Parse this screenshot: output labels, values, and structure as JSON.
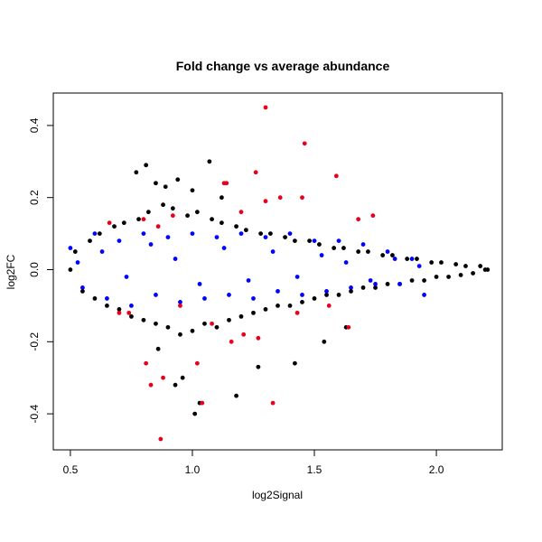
{
  "chart_data": {
    "type": "scatter",
    "title": "Fold change vs average abundance",
    "xlabel": "log2Signal",
    "ylabel": "log2FC",
    "xlim": [
      0.43,
      2.27
    ],
    "ylim": [
      -0.5,
      0.49
    ],
    "xticks": [
      0.5,
      1.0,
      1.5,
      2.0
    ],
    "xtick_labels": [
      "0.5",
      "1.0",
      "1.5",
      "2.0"
    ],
    "yticks": [
      -0.4,
      -0.2,
      0.0,
      0.2,
      0.4
    ],
    "ytick_labels": [
      "-0.4",
      "-0.2",
      "0.0",
      "0.2",
      "0.4"
    ],
    "grid": false,
    "legend": "none",
    "series": [
      {
        "color": "#000000",
        "x": [
          0.5,
          0.52,
          0.55,
          0.58,
          0.6,
          0.62,
          0.65,
          0.68,
          0.7,
          0.72,
          0.75,
          0.78,
          0.8,
          0.82,
          0.85,
          0.88,
          0.9,
          0.92,
          0.95,
          0.98,
          1.0,
          1.02,
          1.05,
          1.08,
          1.1,
          1.12,
          1.15,
          1.18,
          1.2,
          1.22,
          1.25,
          1.28,
          1.3,
          1.32,
          1.35,
          1.38,
          1.4,
          1.42,
          1.45,
          1.48,
          1.5,
          1.52,
          1.55,
          1.58,
          1.6,
          1.62,
          1.65,
          1.68,
          1.7,
          1.72,
          1.75,
          1.78,
          1.8,
          1.82,
          1.85,
          1.88,
          1.9,
          1.92,
          1.95,
          1.98,
          2.0,
          2.02,
          2.05,
          2.08,
          2.1,
          2.12,
          2.15,
          2.18,
          2.2,
          2.21,
          0.81,
          0.85,
          0.89,
          0.94,
          1.0,
          1.07,
          1.12,
          0.86,
          0.96,
          1.01,
          1.18,
          1.27,
          1.42,
          1.54,
          1.63,
          0.77,
          0.93,
          1.03
        ],
        "y": [
          0.0,
          0.05,
          -0.06,
          0.08,
          -0.08,
          0.1,
          -0.1,
          0.12,
          -0.11,
          0.13,
          -0.13,
          0.14,
          -0.14,
          0.16,
          -0.15,
          0.18,
          -0.16,
          0.17,
          -0.18,
          0.15,
          -0.17,
          0.16,
          -0.15,
          0.14,
          -0.16,
          0.13,
          -0.14,
          0.12,
          -0.13,
          0.11,
          -0.12,
          0.1,
          -0.11,
          0.1,
          -0.1,
          0.09,
          -0.1,
          0.08,
          -0.09,
          0.08,
          -0.08,
          0.07,
          -0.07,
          0.06,
          -0.07,
          0.06,
          -0.06,
          0.05,
          -0.05,
          0.05,
          -0.05,
          0.04,
          -0.04,
          0.04,
          -0.04,
          0.03,
          -0.03,
          0.03,
          -0.03,
          0.02,
          -0.02,
          0.02,
          -0.02,
          0.015,
          -0.015,
          0.01,
          -0.01,
          0.01,
          0.0,
          0.0,
          0.29,
          0.24,
          0.23,
          0.25,
          0.22,
          0.3,
          0.2,
          -0.22,
          -0.3,
          -0.4,
          -0.35,
          -0.27,
          -0.26,
          -0.2,
          -0.16,
          0.27,
          -0.32,
          -0.37
        ]
      },
      {
        "color": "#0000ff",
        "x": [
          0.5,
          0.55,
          0.6,
          0.65,
          0.7,
          0.75,
          0.8,
          0.85,
          0.9,
          0.95,
          1.0,
          1.05,
          1.1,
          1.15,
          1.2,
          1.25,
          1.3,
          1.35,
          1.4,
          1.45,
          1.5,
          1.55,
          1.6,
          1.65,
          1.7,
          1.75,
          1.8,
          1.85,
          1.9,
          1.95,
          0.53,
          0.63,
          0.73,
          0.83,
          0.93,
          1.03,
          1.13,
          1.23,
          1.33,
          1.43,
          1.53,
          1.63,
          1.73,
          1.83,
          1.93
        ],
        "y": [
          0.06,
          -0.05,
          0.1,
          -0.08,
          0.08,
          -0.1,
          0.1,
          -0.07,
          0.09,
          -0.09,
          0.1,
          -0.08,
          0.09,
          -0.07,
          0.1,
          -0.08,
          0.09,
          -0.06,
          0.1,
          -0.07,
          0.08,
          -0.06,
          0.08,
          -0.05,
          0.07,
          -0.04,
          0.05,
          -0.04,
          0.03,
          -0.07,
          0.02,
          0.05,
          -0.02,
          0.07,
          0.03,
          -0.04,
          0.06,
          -0.03,
          0.05,
          -0.02,
          0.04,
          0.02,
          -0.03,
          0.03,
          0.01
        ]
      },
      {
        "color": "#e8001c",
        "x": [
          1.3,
          1.46,
          1.59,
          1.45,
          1.36,
          1.13,
          1.14,
          1.26,
          1.3,
          1.68,
          1.74,
          0.66,
          0.8,
          0.86,
          0.92,
          1.2,
          0.81,
          0.87,
          1.02,
          1.21,
          1.33,
          1.04,
          0.83,
          0.88,
          1.08,
          1.43,
          1.56,
          1.64,
          0.7,
          0.95,
          1.27,
          1.16,
          0.74
        ],
        "y": [
          0.45,
          0.35,
          0.26,
          0.2,
          0.2,
          0.24,
          0.24,
          0.27,
          0.19,
          0.14,
          0.15,
          0.13,
          0.14,
          0.12,
          0.15,
          0.16,
          -0.26,
          -0.47,
          -0.26,
          -0.18,
          -0.37,
          -0.37,
          -0.32,
          -0.3,
          -0.15,
          -0.12,
          -0.1,
          -0.16,
          -0.12,
          -0.1,
          -0.19,
          -0.2,
          -0.12
        ]
      }
    ]
  }
}
